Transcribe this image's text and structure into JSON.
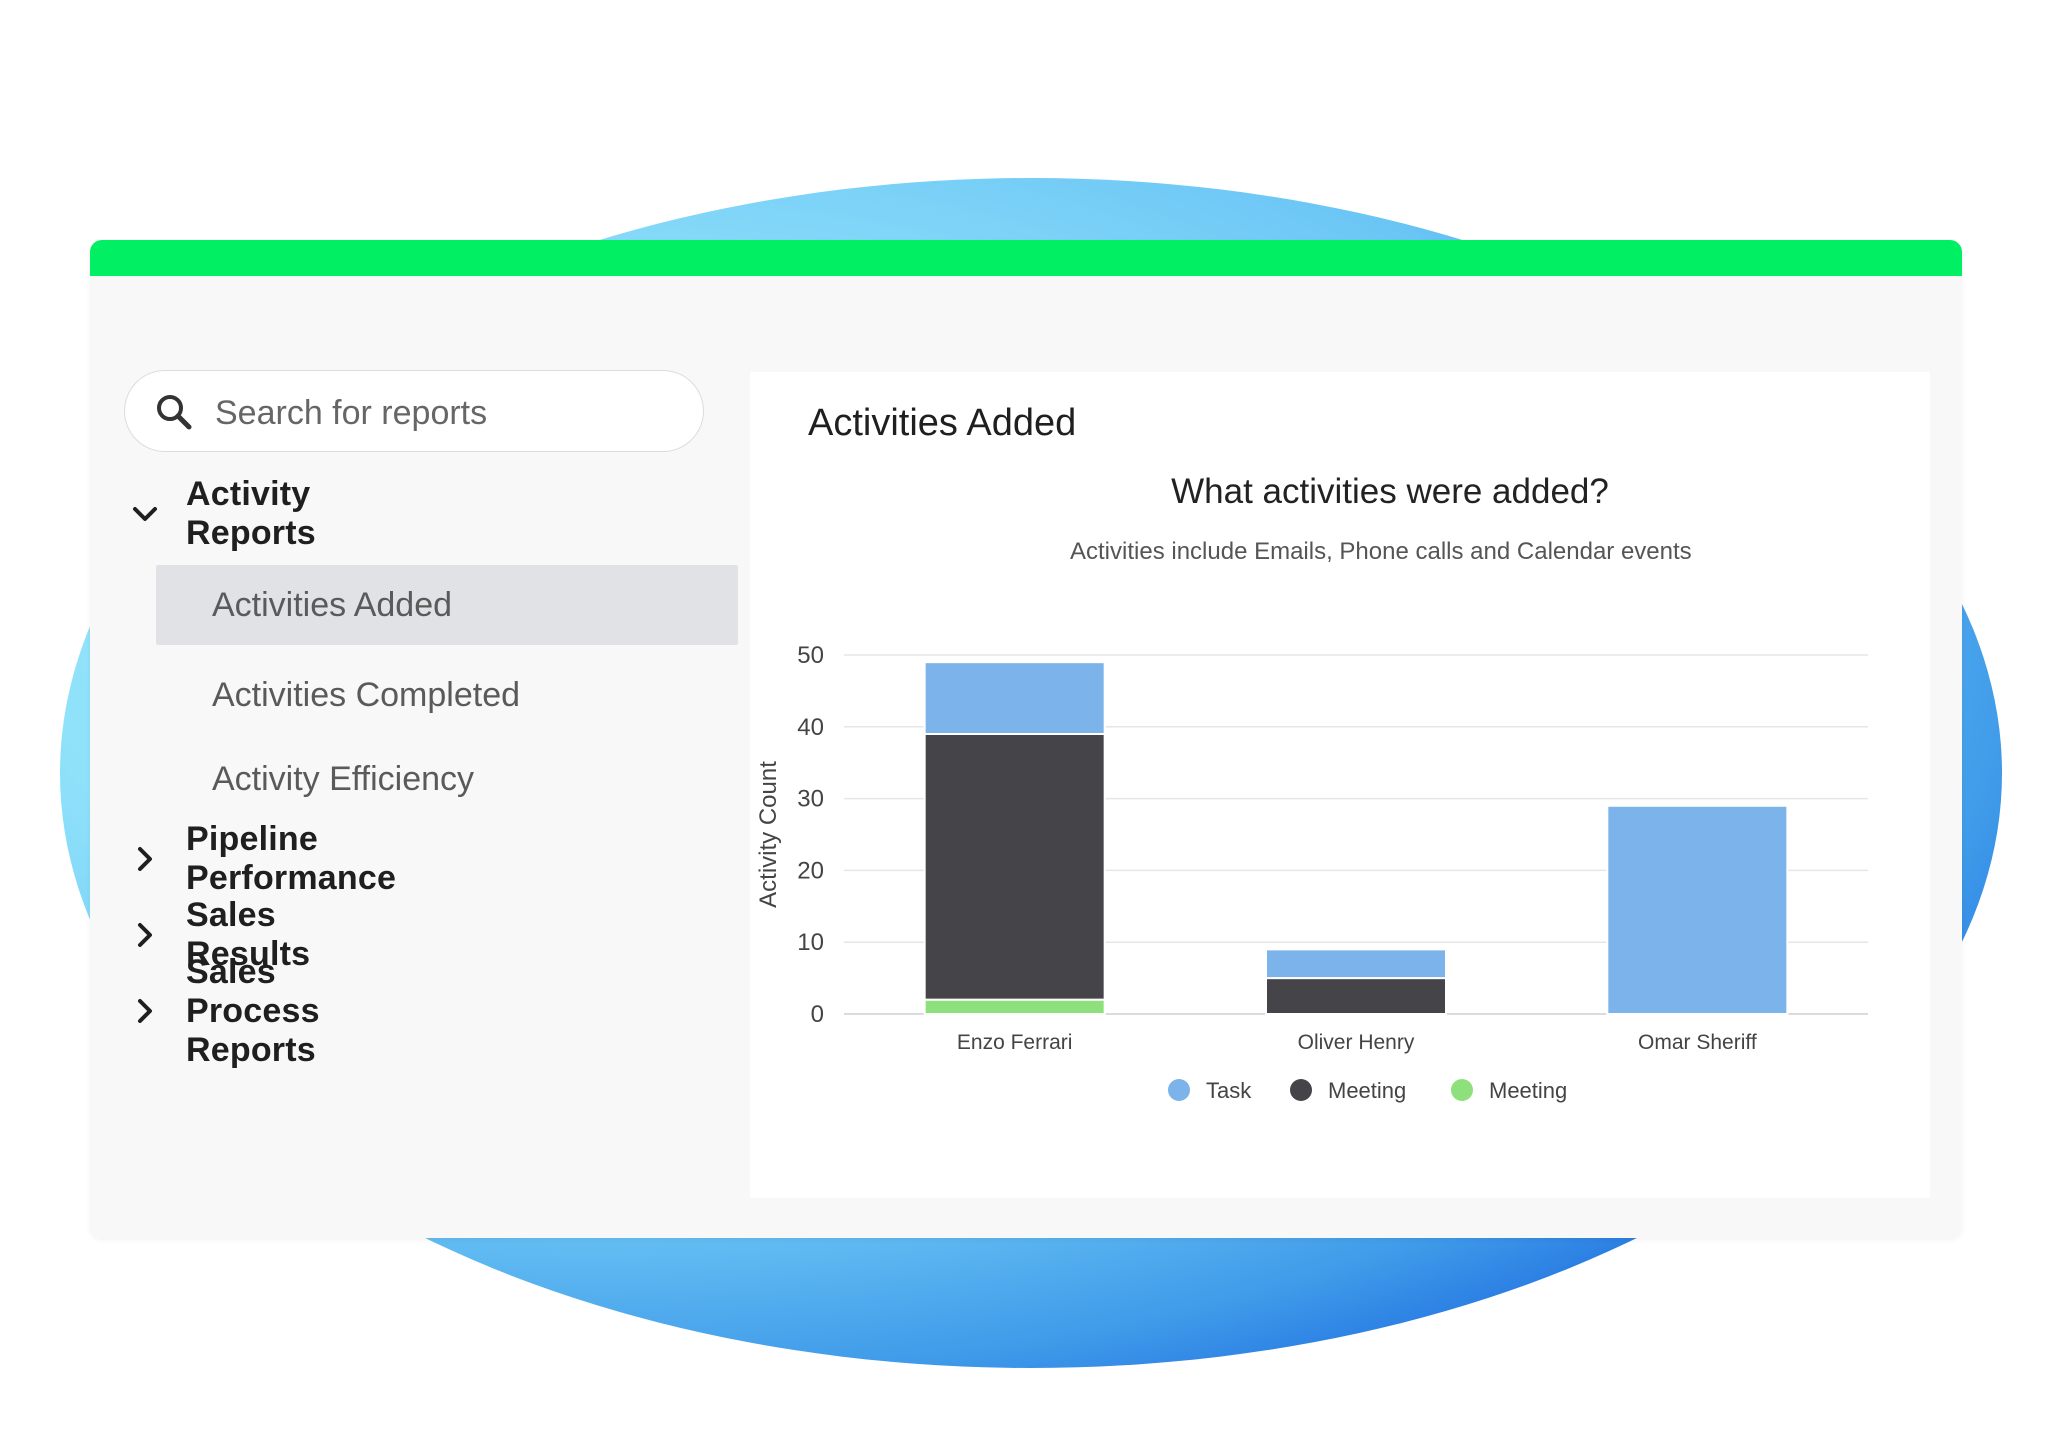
{
  "sidebar": {
    "search_placeholder": "Search for reports",
    "groups": [
      {
        "label": "Activity Reports",
        "expanded": true,
        "icon": "chevron-down-icon"
      },
      {
        "label": "Pipeline Performance",
        "expanded": false,
        "icon": "chevron-right-icon"
      },
      {
        "label": "Sales Results",
        "expanded": false,
        "icon": "chevron-right-icon"
      },
      {
        "label": "Sales Process Reports",
        "expanded": false,
        "icon": "chevron-right-icon"
      }
    ],
    "items": [
      {
        "label": "Activities Added",
        "active": true
      },
      {
        "label": "Activities Completed",
        "active": false
      },
      {
        "label": "Activity Efficiency",
        "active": false
      }
    ]
  },
  "panel": {
    "title": "Activities Added"
  },
  "colors": {
    "accent_bar": "#00ef63",
    "task": "#7bb3ea",
    "meeting_dark": "#454549",
    "meeting_green": "#8ee07c"
  },
  "chart_data": {
    "type": "bar",
    "stacked": true,
    "title": "What activities were added?",
    "subtitle": "Activities include Emails, Phone calls and Calendar events",
    "ylabel": "Activity Count",
    "xlabel": "",
    "ylim": [
      0,
      50
    ],
    "yticks": [
      0,
      10,
      20,
      30,
      40,
      50
    ],
    "grid": true,
    "legend": "bottom",
    "categories": [
      "Enzo Ferrari",
      "Oliver Henry",
      "Omar Sheriff"
    ],
    "series": [
      {
        "name": "Meeting",
        "color": "#8ee07c",
        "values": [
          2,
          0,
          0
        ]
      },
      {
        "name": "Meeting",
        "color": "#454549",
        "values": [
          37,
          5,
          0
        ]
      },
      {
        "name": "Task",
        "color": "#7bb3ea",
        "values": [
          10,
          4,
          29
        ]
      }
    ],
    "legend_order": [
      2,
      1,
      0
    ]
  }
}
